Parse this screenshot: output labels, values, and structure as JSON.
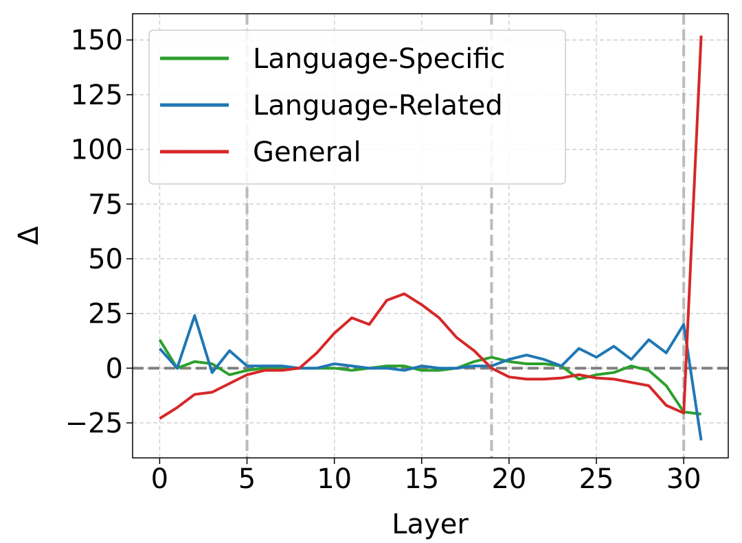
{
  "chart_data": {
    "type": "line",
    "xlabel": "Layer",
    "ylabel": "Δ",
    "x": [
      0,
      1,
      2,
      3,
      4,
      5,
      6,
      7,
      8,
      9,
      10,
      11,
      12,
      13,
      14,
      15,
      16,
      17,
      18,
      19,
      20,
      21,
      22,
      23,
      24,
      25,
      26,
      27,
      28,
      29,
      30,
      31
    ],
    "series": [
      {
        "name": "Language-Specific",
        "color": "#2ca02c",
        "values": [
          13,
          0,
          3,
          2,
          -3,
          -1,
          0,
          0,
          0,
          0,
          0,
          -1,
          0,
          1,
          1,
          -1,
          -1,
          0,
          3,
          5,
          3,
          2,
          2,
          1,
          -5,
          -3,
          -2,
          1,
          -1,
          -8,
          -20,
          -21
        ]
      },
      {
        "name": "Language-Related",
        "color": "#1f77b4",
        "values": [
          9,
          0,
          24,
          -2,
          8,
          1,
          1,
          1,
          0,
          0,
          2,
          1,
          0,
          0,
          -1,
          1,
          0,
          0,
          1,
          1,
          4,
          6,
          4,
          1,
          9,
          5,
          10,
          4,
          13,
          7,
          20,
          -33
        ]
      },
      {
        "name": "General",
        "color": "#d62728",
        "values": [
          -23,
          -18,
          -12,
          -11,
          -7,
          -3,
          -1,
          -1,
          0,
          7,
          16,
          23,
          20,
          31,
          34,
          29,
          23,
          14,
          8,
          0,
          -4,
          -5,
          -5,
          -4.5,
          -3,
          -4.5,
          -5,
          -6.5,
          -8,
          -17,
          -20.5,
          152
        ]
      }
    ],
    "xlim": [
      -1.55,
      32.55
    ],
    "ylim": [
      -41,
      162
    ],
    "xticks": [
      0,
      5,
      10,
      15,
      20,
      25,
      30
    ],
    "yticks": [
      {
        "value": -25,
        "label": "−25"
      },
      0,
      25,
      50,
      75,
      100,
      125,
      150
    ],
    "reference_lines": {
      "x": [
        5,
        19,
        30
      ],
      "y": [
        0
      ]
    },
    "grid": true,
    "legend": "upper-left"
  }
}
